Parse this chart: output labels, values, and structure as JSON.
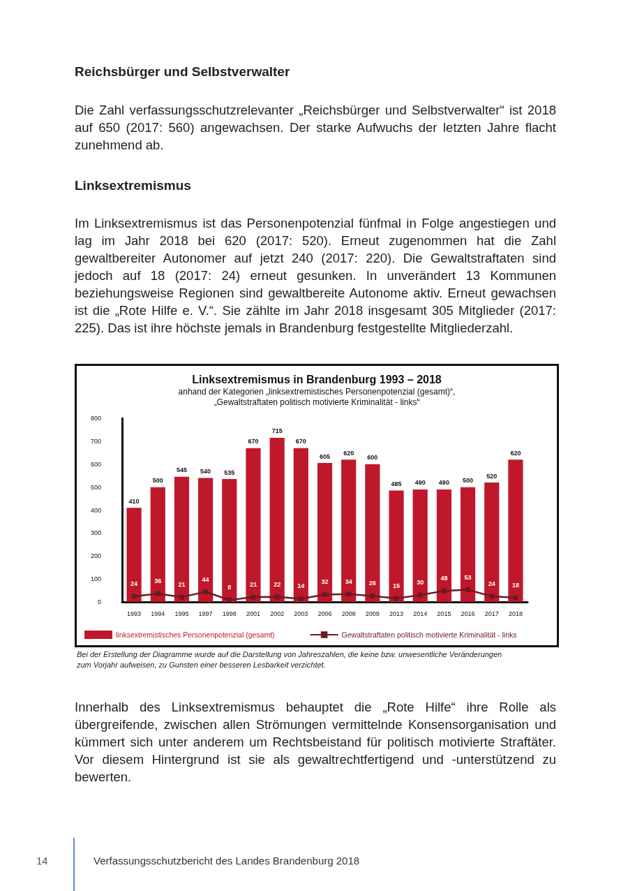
{
  "chart_data": {
    "type": "bar",
    "title": "Linksextremismus in Brandenburg 1993 – 2018",
    "subtitle": "anhand der Kategorien „linksextremistisches Personenpotenzial (gesamt)“,\n„Gewaltstraftaten politisch motivierte Kriminalität - links“",
    "categories": [
      "1993",
      "1994",
      "1995",
      "1997",
      "1998",
      "2001",
      "2002",
      "2003",
      "2006",
      "2008",
      "2009",
      "2013",
      "2014",
      "2015",
      "2016",
      "2017",
      "2018"
    ],
    "series": [
      {
        "name": "linksextremistisches Personenpotenzial (gesamt)",
        "color": "#c0182b",
        "values": [
          410,
          500,
          545,
          540,
          535,
          670,
          715,
          670,
          605,
          620,
          600,
          485,
          490,
          490,
          500,
          520,
          620
        ]
      },
      {
        "name": "Gewaltstraftaten politisch motivierte Kriminalität - links",
        "type": "line",
        "color": "#6b1a1f",
        "marker": "square",
        "line_style": "solid",
        "values": [
          24,
          36,
          21,
          44,
          8,
          21,
          22,
          14,
          32,
          34,
          26,
          15,
          30,
          48,
          53,
          24,
          18
        ]
      }
    ],
    "ylim": [
      0,
      800
    ],
    "yticks": [
      0,
      100,
      200,
      300,
      400,
      500,
      600,
      700,
      800
    ],
    "grid": false,
    "legend": "bottom",
    "data_labels": true,
    "annotations": [
      "Reichsbürger und Selbstverwalter",
      "Die Zahl verfassungsschutzrelevanter „Reichsbürger und Selbstverwalter“ ist 2018 auf 650 (2017: 560) angewachsen. Der starke Aufwuchs der letzten Jahre flacht zunehmend ab.",
      "Linksextremismus",
      "Im Linksextremismus ist das Personenpotenzial fünfmal in Folge angestiegen und lag im Jahr 2018 bei 620 (2017: 520). Erneut zugenommen hat die Zahl gewaltbereiter Autonomer auf jetzt 240 (2017: 220). Die Gewaltstraftaten sind jedoch auf 18 (2017: 24) erneut gesunken. In unverändert 13 Kommunen beziehungsweise Regionen sind gewaltbereite Autonome aktiv. Erneut gewachsen ist die „Rote Hilfe e. V.“. Sie zählte im Jahr 2018 insgesamt 305 Mitglieder (2017: 225). Das ist ihre höchste jemals in Brandenburg festgestellte Mitgliederzahl.",
      "Bei der Erstellung der Diagramme wurde auf die Darstellung von Jahreszahlen, die keine bzw. unwesentliche Veränderungen zum Vorjahr aufweisen, zu Gunsten einer besseren Lesbarkeit verzichtet.",
      "Innerhalb des Linksextremismus behauptet die „Rote Hilfe“ ihre Rolle als übergreifende, zwischen allen Strömungen vermittelnde Konsensorganisation und kümmert sich unter anderem um Rechtsbeistand für politisch motivierte Straftäter. Vor diesem Hintergrund ist sie als gewaltrechtfertigend und -unterstützend zu bewerten.",
      "14",
      "Verfassungsschutzbericht des Landes Brandenburg 2018"
    ]
  }
}
